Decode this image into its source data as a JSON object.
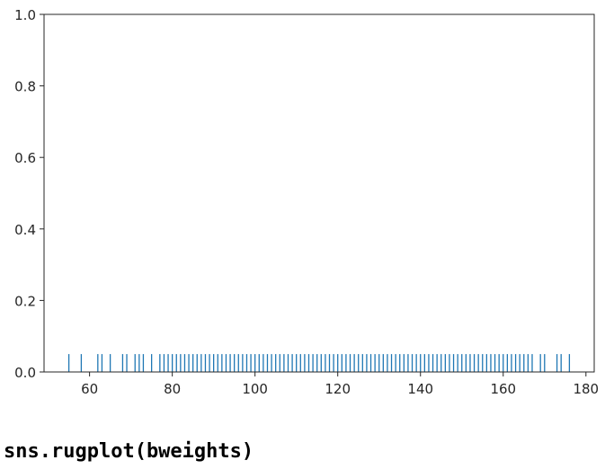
{
  "chart_data": {
    "type": "rug",
    "title": "",
    "xlabel": "",
    "ylabel": "",
    "xlim": [
      49,
      182
    ],
    "ylim": [
      0,
      1
    ],
    "xticks": [
      60,
      80,
      100,
      120,
      140,
      160,
      180
    ],
    "yticks": [
      0.0,
      0.2,
      0.4,
      0.6,
      0.8,
      1.0
    ],
    "xtick_labels": [
      "60",
      "80",
      "100",
      "120",
      "140",
      "160",
      "180"
    ],
    "ytick_labels": [
      "0.0",
      "0.2",
      "0.4",
      "0.6",
      "0.8",
      "1.0"
    ],
    "rug_height": 0.05,
    "grid": false,
    "color": "#1f77b4",
    "values": [
      55,
      58,
      62,
      63,
      65,
      68,
      69,
      71,
      72,
      73,
      75,
      77,
      78,
      79,
      80,
      81,
      82,
      83,
      84,
      85,
      86,
      87,
      88,
      89,
      90,
      91,
      92,
      93,
      94,
      95,
      96,
      97,
      98,
      99,
      100,
      101,
      102,
      103,
      104,
      105,
      106,
      107,
      108,
      109,
      110,
      111,
      112,
      113,
      114,
      115,
      116,
      117,
      118,
      119,
      120,
      121,
      122,
      123,
      124,
      125,
      126,
      127,
      128,
      129,
      130,
      131,
      132,
      133,
      134,
      135,
      136,
      137,
      138,
      139,
      140,
      141,
      142,
      143,
      144,
      145,
      146,
      147,
      148,
      149,
      150,
      151,
      152,
      153,
      154,
      155,
      156,
      157,
      158,
      159,
      160,
      161,
      162,
      163,
      164,
      165,
      166,
      167,
      169,
      170,
      173,
      174,
      176
    ]
  },
  "caption": "sns.rugplot(bweights)"
}
